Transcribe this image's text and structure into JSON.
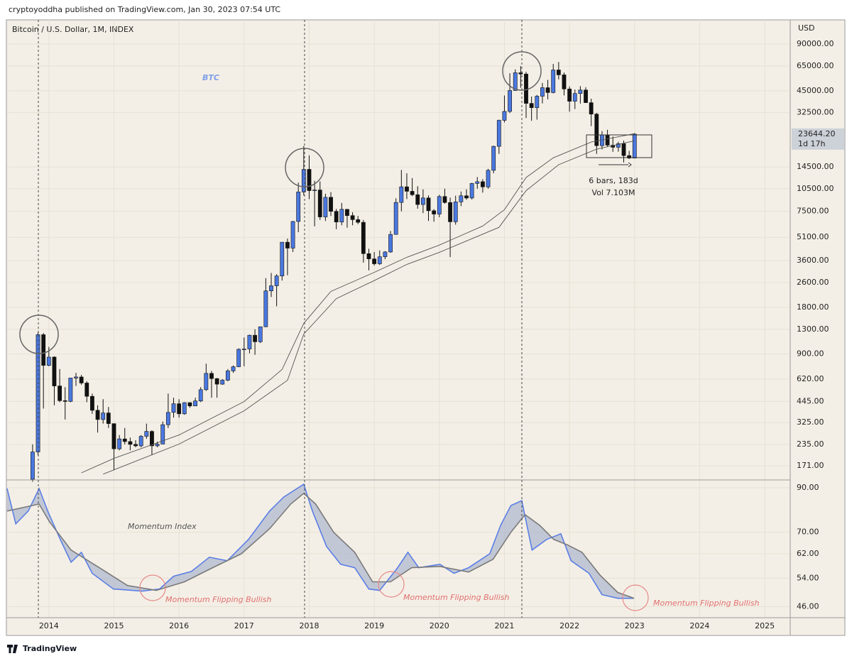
{
  "header": {
    "byline": "cryptoyoddha published on TradingView.com, Jan 30, 2023 07:54 UTC"
  },
  "footer": {
    "brand": "TradingView"
  },
  "chart_data": [
    {
      "type": "candlestick",
      "title": "Bitcoin / U.S. Dollar, 1M, INDEX",
      "y_unit": "USD",
      "log_scale": true,
      "grid": true,
      "up_color": "#4a78e0",
      "down_color": "#111111",
      "annotations": [
        "BTC",
        "6 bars, 183d",
        "Vol 7.103M"
      ],
      "last_price": {
        "value": 23644.2,
        "label": "23644.20"
      },
      "countdown": "1d 17h",
      "xlim": [
        -4.7,
        139.7
      ],
      "xticks": [
        {
          "value": 3,
          "label": "2014"
        },
        {
          "value": 15,
          "label": "2015"
        },
        {
          "value": 27,
          "label": "2016"
        },
        {
          "value": 39,
          "label": "2017"
        },
        {
          "value": 51,
          "label": "2018"
        },
        {
          "value": 63,
          "label": "2019"
        },
        {
          "value": 75,
          "label": "2020"
        },
        {
          "value": 87,
          "label": "2021"
        },
        {
          "value": 99,
          "label": "2022"
        },
        {
          "value": 111,
          "label": "2023"
        },
        {
          "value": 123,
          "label": "2024"
        },
        {
          "value": 135,
          "label": "2025"
        }
      ],
      "ylim": [
        140,
        129000
      ],
      "yticks": [
        {
          "value": 90000,
          "label": "90000.00"
        },
        {
          "value": 65000,
          "label": "65000.00"
        },
        {
          "value": 45000,
          "label": "45000.00"
        },
        {
          "value": 32500,
          "label": "32500.00"
        },
        {
          "value": 14500,
          "label": "14500.00"
        },
        {
          "value": 10500,
          "label": "10500.00"
        },
        {
          "value": 7500,
          "label": "7500.00"
        },
        {
          "value": 5100,
          "label": "5100.00"
        },
        {
          "value": 3600,
          "label": "3600.00"
        },
        {
          "value": 2600,
          "label": "2600.00"
        },
        {
          "value": 1800,
          "label": "1800.00"
        },
        {
          "value": 1300,
          "label": "1300.00"
        },
        {
          "value": 900,
          "label": "900.00"
        },
        {
          "value": 620,
          "label": "620.00"
        },
        {
          "value": 445,
          "label": "445.00"
        },
        {
          "value": 325,
          "label": "325.00"
        },
        {
          "value": 235,
          "label": "235.00"
        },
        {
          "value": 171,
          "label": "171.00"
        }
      ],
      "open": [
        140,
        210,
        1200,
        760,
        860,
        560,
        450,
        445,
        630,
        640,
        585,
        480,
        390,
        340,
        375,
        320,
        220,
        255,
        245,
        235,
        230,
        265,
        285,
        230,
        236,
        315,
        378,
        430,
        370,
        437,
        416,
        448,
        530,
        675,
        625,
        575,
        610,
        700,
        745,
        965,
        970,
        1190,
        1080,
        1350,
        2300,
        2480,
        2870,
        4740,
        4340,
        6450,
        10000,
        14000,
        10200,
        10300,
        6900,
        9240,
        7500,
        6400,
        7730,
        7040,
        6630,
        6370,
        4000,
        3700,
        3440,
        3820,
        4100,
        5320,
        8560,
        10800,
        10100,
        9600,
        8300,
        9150,
        7570,
        7200,
        9350,
        8550,
        6420,
        8630,
        9450,
        9140,
        11350,
        11650,
        10780,
        13800,
        19700,
        29000,
        33100,
        45200,
        58800,
        57700,
        37300,
        35000,
        41500,
        47100,
        43800,
        61300,
        57000,
        46200,
        38500,
        43200,
        45500,
        37700,
        31800,
        19900,
        23300,
        20050,
        19430,
        20490,
        17170,
        16550
      ],
      "high": [
        235,
        1240,
        1230,
        1000,
        870,
        720,
        550,
        630,
        680,
        660,
        600,
        500,
        420,
        460,
        410,
        320,
        270,
        300,
        260,
        250,
        270,
        320,
        290,
        245,
        330,
        500,
        470,
        460,
        440,
        440,
        470,
        550,
        780,
        700,
        630,
        620,
        720,
        760,
        980,
        1150,
        1200,
        1300,
        1350,
        2780,
        3000,
        2950,
        4750,
        5000,
        6500,
        11500,
        19800,
        17200,
        11800,
        11700,
        9750,
        9990,
        7780,
        8500,
        7760,
        7400,
        7000,
        6600,
        4300,
        4100,
        4200,
        4150,
        5600,
        9100,
        13880,
        13200,
        12300,
        10900,
        10400,
        9500,
        7750,
        9580,
        10500,
        9200,
        9470,
        10070,
        10400,
        11450,
        12480,
        12100,
        14100,
        19900,
        29300,
        41950,
        58350,
        61800,
        64900,
        59600,
        41300,
        42300,
        50500,
        52900,
        67000,
        69000,
        59000,
        48000,
        45800,
        48200,
        47400,
        40000,
        32400,
        24700,
        25200,
        22800,
        21100,
        21470,
        18400,
        23950
      ],
      "low": [
        135,
        200,
        400,
        750,
        420,
        440,
        340,
        440,
        560,
        570,
        440,
        370,
        280,
        320,
        300,
        160,
        215,
        235,
        215,
        225,
        225,
        255,
        200,
        225,
        236,
        300,
        350,
        350,
        365,
        405,
        415,
        440,
        520,
        470,
        470,
        570,
        600,
        680,
        740,
        750,
        910,
        890,
        1060,
        1340,
        2100,
        1830,
        2680,
        2900,
        4100,
        5500,
        9500,
        9000,
        6000,
        6600,
        6500,
        7000,
        5750,
        6100,
        5880,
        6100,
        6200,
        3500,
        3120,
        3350,
        3380,
        3680,
        4050,
        5300,
        7500,
        9000,
        9400,
        7800,
        7300,
        6500,
        6430,
        6870,
        8400,
        3800,
        6150,
        8100,
        8900,
        8950,
        10500,
        9900,
        10500,
        13200,
        17600,
        28100,
        32300,
        45000,
        47000,
        30000,
        28800,
        29300,
        37300,
        39600,
        43300,
        53300,
        42000,
        33000,
        34300,
        37200,
        37600,
        26600,
        17600,
        18800,
        19600,
        18150,
        18200,
        15500,
        16300,
        16500
      ],
      "close": [
        210,
        1200,
        760,
        860,
        560,
        450,
        445,
        630,
        640,
        585,
        480,
        390,
        340,
        375,
        320,
        220,
        255,
        245,
        235,
        230,
        265,
        285,
        230,
        236,
        315,
        378,
        430,
        370,
        437,
        416,
        448,
        530,
        675,
        625,
        575,
        610,
        700,
        745,
        965,
        970,
        1190,
        1080,
        1350,
        2300,
        2480,
        2870,
        4740,
        4340,
        6450,
        10000,
        14000,
        10200,
        10300,
        6900,
        9240,
        7500,
        6400,
        7730,
        7040,
        6630,
        6370,
        4000,
        3700,
        3440,
        3820,
        4100,
        5320,
        8560,
        10800,
        10100,
        9600,
        8300,
        9150,
        7570,
        7200,
        9350,
        8550,
        6420,
        8630,
        9450,
        9140,
        11350,
        11650,
        10780,
        13800,
        19700,
        29000,
        33100,
        45200,
        58800,
        57700,
        37300,
        35000,
        41500,
        47100,
        43800,
        61300,
        57000,
        46200,
        38500,
        43200,
        45500,
        37700,
        31800,
        19900,
        23300,
        20050,
        19430,
        20490,
        17170,
        16550,
        23644.2
      ],
      "lines": [
        {
          "color": "#555555",
          "x": [
            9,
            15,
            27,
            39,
            46,
            50,
            55,
            63,
            69,
            75,
            83,
            87,
            91,
            96,
            103,
            111
          ],
          "values": [
            154,
            191,
            270,
            444,
            715,
            1420,
            2280,
            3030,
            3790,
            4540,
            6030,
            7690,
            12400,
            16600,
            21000,
            23800
          ]
        },
        {
          "color": "#555555",
          "x": [
            13,
            27,
            39,
            47,
            50,
            56,
            63,
            69,
            75,
            86,
            91,
            97,
            104,
            111
          ],
          "values": [
            151,
            236,
            387,
            609,
            1210,
            2050,
            2680,
            3410,
            4080,
            5910,
            10200,
            15000,
            18900,
            21400
          ]
        }
      ]
    },
    {
      "type": "line",
      "log_scale": true,
      "grid": true,
      "band_color": "#a7b0cc",
      "annotations": [
        "Momentum Index",
        "Momentum Flipping Bullish",
        "Momentum Flipping Bullish",
        "Momentum Flipping Bullish"
      ],
      "xlim": [
        -4.7,
        139.7
      ],
      "ylim": [
        43.2,
        93.3
      ],
      "yticks": [
        {
          "value": 90,
          "label": "90.00"
        },
        {
          "value": 70,
          "label": "70.00"
        },
        {
          "value": 62,
          "label": "62.00"
        },
        {
          "value": 54,
          "label": "54.00"
        },
        {
          "value": 46,
          "label": "46.00"
        }
      ],
      "series": [
        {
          "color": "#5b7fe6",
          "x": [
            -4.7,
            -3.1,
            -0.8,
            1.2,
            2.9,
            5.1,
            7.1,
            9.0,
            11.0,
            14.9,
            20.2,
            23.4,
            26.0,
            29.3,
            32.6,
            35.9,
            39.8,
            43.7,
            46.3,
            50.0,
            51.6,
            54.2,
            56.8,
            59.4,
            62.0,
            64.0,
            67.3,
            69.2,
            71.2,
            75.1,
            77.7,
            80.4,
            84.3,
            86.3,
            88.2,
            90.2,
            92.1,
            94.8,
            97.4,
            99.3,
            102.6,
            105.0,
            107.9,
            110.9
          ],
          "values": [
            89.6,
            73.4,
            78.9,
            89.6,
            78.2,
            67.2,
            59.1,
            62.5,
            55.5,
            50.8,
            50.2,
            50.8,
            54.6,
            56.1,
            60.8,
            59.6,
            67.2,
            78.9,
            85.4,
            91.8,
            78.9,
            64.6,
            58.4,
            57.3,
            50.8,
            50.4,
            57.3,
            62.5,
            57.3,
            58.4,
            55.5,
            57.3,
            62.0,
            72.8,
            81.4,
            83.7,
            63.3,
            67.2,
            69.4,
            59.6,
            55.5,
            49.2,
            48.2,
            48.2
          ]
        },
        {
          "color": "#7a7a7a",
          "x": [
            -4.7,
            1.2,
            3.1,
            7.1,
            12.3,
            17.5,
            22.8,
            28.0,
            33.2,
            38.5,
            43.7,
            47.6,
            50.0,
            52.2,
            55.5,
            59.4,
            62.7,
            66.0,
            69.9,
            75.1,
            80.4,
            84.9,
            88.2,
            90.8,
            93.5,
            96.1,
            98.7,
            101.3,
            104.6,
            107.9,
            110.9
          ],
          "values": [
            78.9,
            82.1,
            74.3,
            63.3,
            57.3,
            51.8,
            50.4,
            52.9,
            57.3,
            62.0,
            71.4,
            82.1,
            87.2,
            82.1,
            70.0,
            62.5,
            52.9,
            52.9,
            57.3,
            57.7,
            55.9,
            60.1,
            70.0,
            77.3,
            72.8,
            67.2,
            65.1,
            62.5,
            55.0,
            49.8,
            48.2
          ]
        }
      ]
    }
  ]
}
